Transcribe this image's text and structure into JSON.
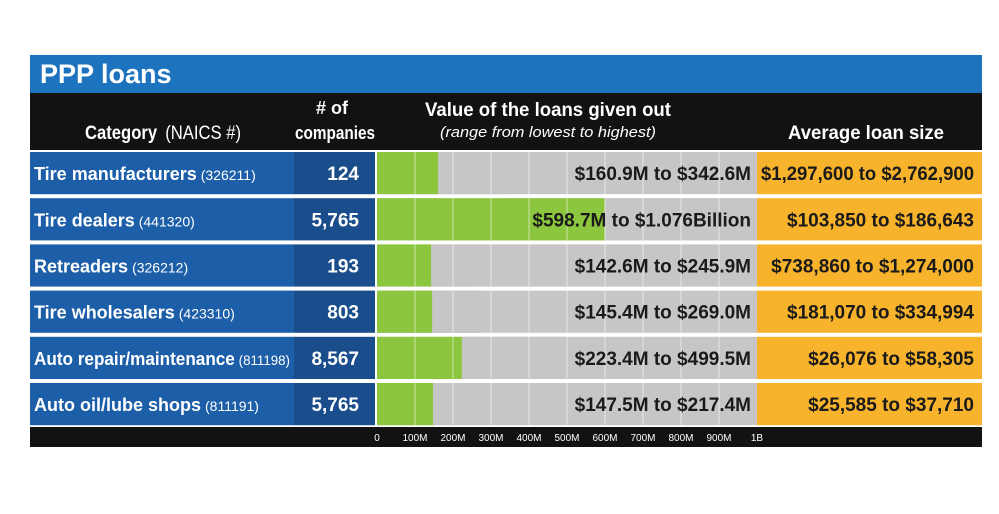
{
  "title": "PPP loans",
  "colors": {
    "title_bar": "#1e73be",
    "header": "#121212",
    "category_cell": "#1d5ea8",
    "count_cell": "#1a4d8c",
    "bar_green": "#8cc63f",
    "bar_gray": "#c6c6c6",
    "avg_cell": "#f7b32b",
    "divider": "#dde5ee"
  },
  "headers": {
    "category": "Category",
    "category_suffix": "(NAICS #)",
    "count_line1": "# of",
    "count_line2": "companies",
    "value_line1": "Value of the loans given out",
    "value_line2": "(range from lowest to highest)",
    "average": "Average loan size"
  },
  "chart_data": {
    "type": "bar",
    "title": "PPP loans",
    "xlabel": "",
    "ylabel": "",
    "x_range_millions": [
      0,
      1000
    ],
    "x_tick_labels": [
      "0",
      "100M",
      "200M",
      "300M",
      "400M",
      "500M",
      "600M",
      "700M",
      "800M",
      "900M",
      "1B"
    ],
    "grid": true,
    "rows": [
      {
        "name": "Tire manufacturers",
        "naics": "(326211)",
        "companies": "124",
        "range_label": "$160.9M to $342.6M",
        "low_millions": 160.9,
        "high_millions": 342.6,
        "average_label": "$1,297,600 to $2,762,900"
      },
      {
        "name": "Tire dealers",
        "naics": "(441320)",
        "companies": "5,765",
        "range_label": "$598.7M to $1.076Billion",
        "low_millions": 598.7,
        "high_millions": 1076,
        "average_label": "$103,850 to $186,643"
      },
      {
        "name": "Retreaders",
        "naics": "(326212)",
        "companies": "193",
        "range_label": "$142.6M to $245.9M",
        "low_millions": 142.6,
        "high_millions": 245.9,
        "average_label": "$738,860 to $1,274,000"
      },
      {
        "name": "Tire wholesalers",
        "naics": "(423310)",
        "companies": "803",
        "range_label": "$145.4M to $269.0M",
        "low_millions": 145.4,
        "high_millions": 269.0,
        "average_label": "$181,070 to $334,994"
      },
      {
        "name": "Auto repair/maintenance",
        "naics": "(811198)",
        "companies": "8,567",
        "range_label": "$223.4M to $499.5M",
        "low_millions": 223.4,
        "high_millions": 499.5,
        "average_label": "$26,076 to $58,305"
      },
      {
        "name": "Auto oil/lube shops",
        "naics": "(811191)",
        "companies": "5,765",
        "range_label": "$147.5M to $217.4M",
        "low_millions": 147.5,
        "high_millions": 217.4,
        "average_label": "$25,585 to $37,710"
      }
    ]
  }
}
